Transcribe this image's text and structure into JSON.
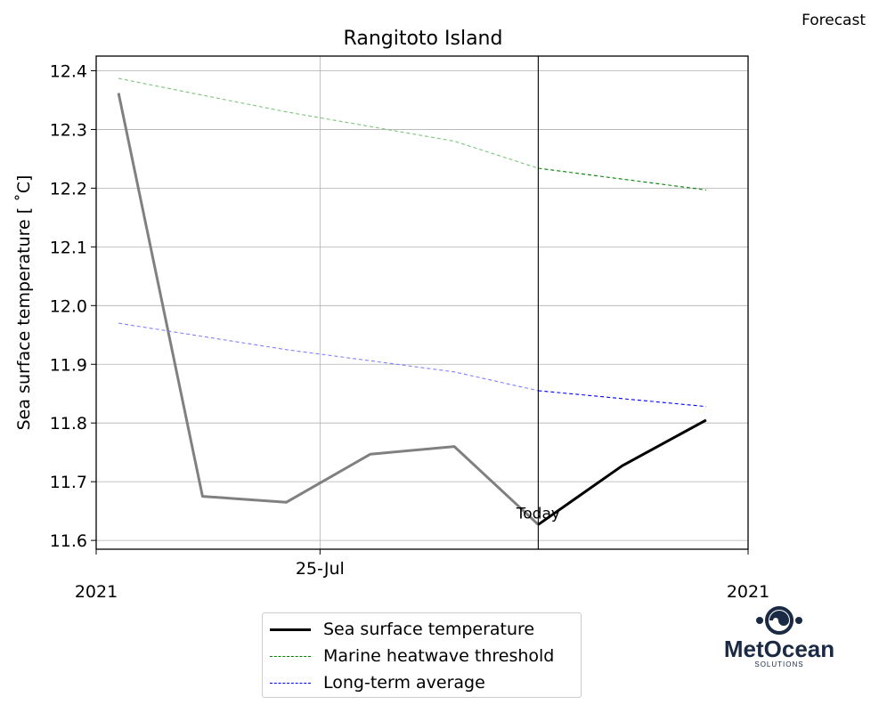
{
  "header": {
    "forecast_label": "Forecast"
  },
  "chart_data": {
    "type": "line",
    "title": "Rangitoto Island",
    "xlabel": "",
    "ylabel": "Sea surface temperature [$^\\circ$C]",
    "ylabel_display": "Sea surface temperature [ ˚C]",
    "x_dates": [
      "2021-07-22",
      "2021-07-23",
      "2021-07-25",
      "2021-07-26",
      "2021-07-27",
      "2021-07-29",
      "2021-07-30",
      "2021-07-31"
    ],
    "x_tick_labels": [
      {
        "date": "2021-07-25",
        "label": "25-Jul"
      }
    ],
    "x_offset_labels": {
      "left": "2021",
      "right": "2021"
    },
    "xlim": [
      "2021-07-21T16:00",
      "2021-07-31T09:00"
    ],
    "ylim": [
      11.585,
      12.425
    ],
    "y_ticks": [
      11.6,
      11.7,
      11.8,
      11.9,
      12.0,
      12.1,
      12.2,
      12.3,
      12.4
    ],
    "grid": true,
    "today_date": "2021-07-29",
    "today_label": "Today",
    "series": [
      {
        "name": "Sea surface temperature",
        "color_past": "#808080",
        "color_forecast": "#000000",
        "points": [
          {
            "x": "2021-07-22T00:00",
            "y": 12.362
          },
          {
            "x": "2021-07-23T06:00",
            "y": 11.675
          },
          {
            "x": "2021-07-24T12:00",
            "y": 11.665
          },
          {
            "x": "2021-07-25T18:00",
            "y": 11.747
          },
          {
            "x": "2021-07-27T00:00",
            "y": 11.76
          },
          {
            "x": "2021-07-28T06:00",
            "y": 11.627
          },
          {
            "x": "2021-07-29T12:00",
            "y": 11.727
          },
          {
            "x": "2021-07-30T18:00",
            "y": 11.805
          }
        ]
      },
      {
        "name": "Marine heatwave threshold",
        "color_past": "#7cc47c",
        "color_forecast": "#008000",
        "points": [
          {
            "x": "2021-07-22T00:00",
            "y": 12.387
          },
          {
            "x": "2021-07-24T12:00",
            "y": 12.33
          },
          {
            "x": "2021-07-27T00:00",
            "y": 12.28
          },
          {
            "x": "2021-07-28T06:00",
            "y": 12.234
          },
          {
            "x": "2021-07-30T18:00",
            "y": 12.197
          }
        ]
      },
      {
        "name": "Long-term average",
        "color_past": "#8080ff",
        "color_forecast": "#0000ff",
        "points": [
          {
            "x": "2021-07-22T00:00",
            "y": 11.97
          },
          {
            "x": "2021-07-24T12:00",
            "y": 11.925
          },
          {
            "x": "2021-07-27T00:00",
            "y": 11.887
          },
          {
            "x": "2021-07-28T06:00",
            "y": 11.855
          },
          {
            "x": "2021-07-30T18:00",
            "y": 11.828
          }
        ]
      }
    ],
    "legend": {
      "placement": "bottom-center"
    }
  },
  "legend": {
    "items": [
      {
        "label": "Sea surface temperature",
        "color": "#000000",
        "style": "solid"
      },
      {
        "label": "Marine heatwave threshold",
        "color": "#008000",
        "style": "dashed"
      },
      {
        "label": "Long-term average",
        "color": "#0000ff",
        "style": "dashed"
      }
    ]
  },
  "logo": {
    "brand": "MetOcean",
    "sub": "SOLUTIONS",
    "color": "#1a2a44"
  }
}
